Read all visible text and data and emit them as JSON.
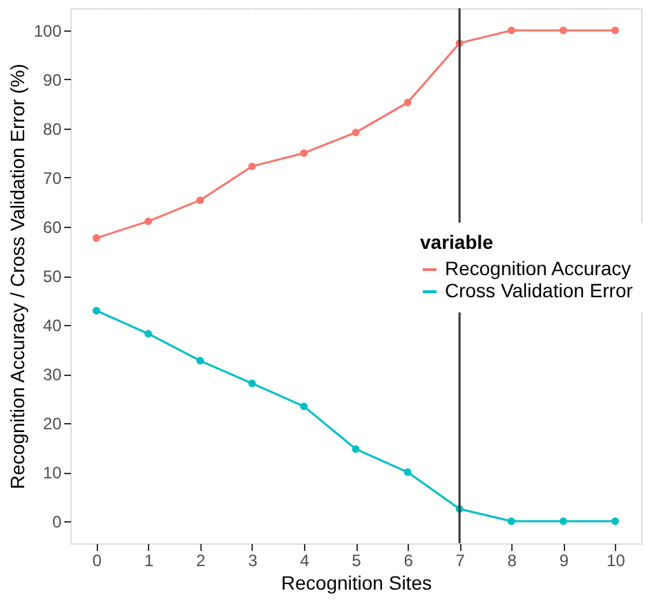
{
  "chart_data": {
    "type": "line",
    "xlabel": "Recognition Sites",
    "ylabel": "Recognition Accuracy / Cross Validation Error (%)",
    "legend_title": "variable",
    "x": [
      0,
      1,
      2,
      3,
      4,
      5,
      6,
      7,
      8,
      9,
      10
    ],
    "series": [
      {
        "name": "Recognition Accuracy",
        "color": "#f8766d",
        "values": [
          57.7,
          61.1,
          65.4,
          72.3,
          75.0,
          79.2,
          85.3,
          97.4,
          100,
          100,
          100
        ]
      },
      {
        "name": "Cross Validation Error",
        "color": "#00bfc4",
        "values": [
          42.9,
          38.2,
          32.7,
          28.1,
          23.4,
          14.7,
          10.0,
          2.5,
          0,
          0,
          0
        ]
      }
    ],
    "xlim": [
      -0.5,
      10.5
    ],
    "xticks": [
      0,
      1,
      2,
      3,
      4,
      5,
      6,
      7,
      8,
      9,
      10
    ],
    "ylim": [
      -4.5,
      104.5
    ],
    "yticks": [
      0,
      10,
      20,
      30,
      40,
      50,
      60,
      70,
      80,
      90,
      100
    ],
    "ref_lines": [
      {
        "axis": "x",
        "value": 7,
        "color": "#333333"
      }
    ],
    "grid": true,
    "legend": "right",
    "marker": "circle",
    "line_style": "solid"
  }
}
